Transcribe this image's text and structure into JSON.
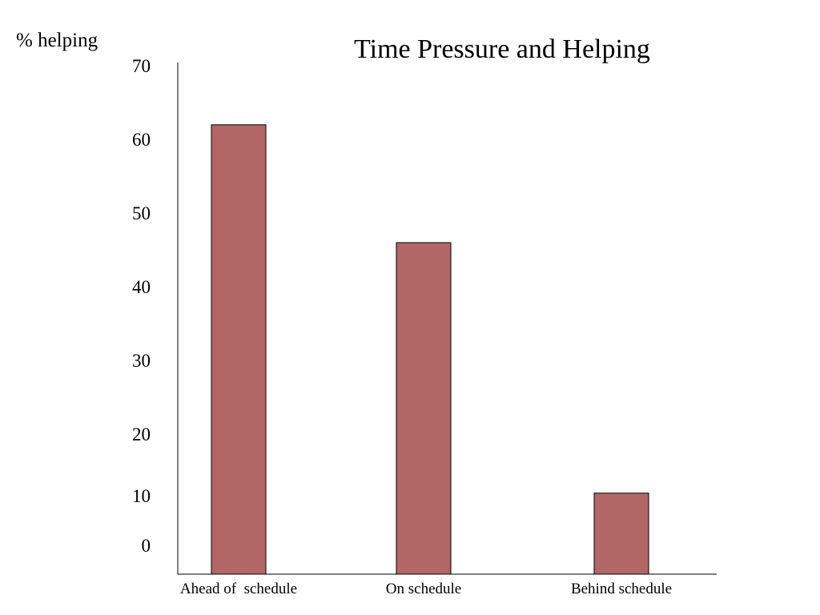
{
  "chart_data": {
    "type": "bar",
    "title": "Time Pressure and Helping",
    "ylabel": "% helping",
    "xlabel": "",
    "categories": [
      "Ahead of  schedule",
      "On schedule",
      "Behind schedule"
    ],
    "values": [
      61,
      45,
      11
    ],
    "y_ticks": [
      {
        "value": 0,
        "label": "0"
      },
      {
        "value": 10,
        "label": "10"
      },
      {
        "value": 20,
        "label": "20"
      },
      {
        "value": 30,
        "label": "30"
      },
      {
        "value": 40,
        "label": "40"
      },
      {
        "value": 50,
        "label": "50"
      },
      {
        "value": 60,
        "label": "60"
      },
      {
        "value": 70,
        "label": "70"
      }
    ],
    "ylim": [
      0,
      70
    ],
    "grid": false,
    "legend": "none",
    "bar_color": "#b36666",
    "bar_edge_color": "#000000"
  }
}
